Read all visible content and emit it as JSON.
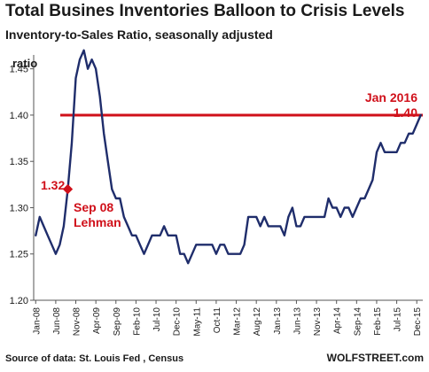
{
  "header": {
    "title": "Total Busines Inventories Balloon to Crisis Levels",
    "subtitle": "Inventory-to-Sales Ratio, seasonally adjusted"
  },
  "footer": {
    "source": "Source of data: St. Louis Fed , Census",
    "brand": "WOLFSTREET.com"
  },
  "chart_data": {
    "type": "line",
    "title": "Total Busines Inventories Balloon to Crisis Levels",
    "subtitle": "Inventory-to-Sales Ratio, seasonally adjusted",
    "ylabel": "ratio",
    "xlabel": "",
    "ylim": [
      1.2,
      1.47
    ],
    "yticks": [
      1.2,
      1.25,
      1.3,
      1.35,
      1.4,
      1.45
    ],
    "ytick_labels": [
      "1.20",
      "1.25",
      "1.30",
      "1.35",
      "1.40",
      "1.45"
    ],
    "xtick_labels": [
      "Jan-08",
      "Jun-08",
      "Nov-08",
      "Apr-09",
      "Sep-09",
      "Feb-10",
      "Jul-10",
      "Dec-10",
      "May-11",
      "Oct-11",
      "Mar-12",
      "Aug-12",
      "Jan-13",
      "Jun-13",
      "Nov-13",
      "Apr-14",
      "Sep-14",
      "Feb-15",
      "Jul-15",
      "Dec-15"
    ],
    "grid": false,
    "line_color": "#1f2d6b",
    "reference_line": {
      "value": 1.4,
      "color": "#d0101a"
    },
    "series": [
      {
        "x": [
          "Jan-08",
          "Feb-08",
          "Mar-08",
          "Apr-08",
          "May-08",
          "Jun-08",
          "Jul-08",
          "Aug-08",
          "Sep-08",
          "Oct-08",
          "Nov-08",
          "Dec-08",
          "Jan-09",
          "Feb-09",
          "Mar-09",
          "Apr-09",
          "May-09",
          "Jun-09",
          "Jul-09",
          "Aug-09",
          "Sep-09",
          "Oct-09",
          "Nov-09",
          "Dec-09",
          "Jan-10",
          "Feb-10",
          "Mar-10",
          "Apr-10",
          "May-10",
          "Jun-10",
          "Jul-10",
          "Aug-10",
          "Sep-10",
          "Oct-10",
          "Nov-10",
          "Dec-10",
          "Jan-11",
          "Feb-11",
          "Mar-11",
          "Apr-11",
          "May-11",
          "Jun-11",
          "Jul-11",
          "Aug-11",
          "Sep-11",
          "Oct-11",
          "Nov-11",
          "Dec-11",
          "Jan-12",
          "Feb-12",
          "Mar-12",
          "Apr-12",
          "May-12",
          "Jun-12",
          "Jul-12",
          "Aug-12",
          "Sep-12",
          "Oct-12",
          "Nov-12",
          "Dec-12",
          "Jan-13",
          "Feb-13",
          "Mar-13",
          "Apr-13",
          "May-13",
          "Jun-13",
          "Jul-13",
          "Aug-13",
          "Sep-13",
          "Oct-13",
          "Nov-13",
          "Dec-13",
          "Jan-14",
          "Feb-14",
          "Mar-14",
          "Apr-14",
          "May-14",
          "Jun-14",
          "Jul-14",
          "Aug-14",
          "Sep-14",
          "Oct-14",
          "Nov-14",
          "Dec-14",
          "Jan-15",
          "Feb-15",
          "Mar-15",
          "Apr-15",
          "May-15",
          "Jun-15",
          "Jul-15",
          "Aug-15",
          "Sep-15",
          "Oct-15",
          "Nov-15",
          "Dec-15",
          "Jan-16"
        ],
        "values": [
          1.27,
          1.29,
          1.28,
          1.27,
          1.26,
          1.25,
          1.26,
          1.28,
          1.32,
          1.37,
          1.44,
          1.46,
          1.47,
          1.45,
          1.46,
          1.45,
          1.42,
          1.38,
          1.35,
          1.32,
          1.31,
          1.31,
          1.29,
          1.28,
          1.27,
          1.27,
          1.26,
          1.25,
          1.26,
          1.27,
          1.27,
          1.27,
          1.28,
          1.27,
          1.27,
          1.27,
          1.25,
          1.25,
          1.24,
          1.25,
          1.26,
          1.26,
          1.26,
          1.26,
          1.26,
          1.25,
          1.26,
          1.26,
          1.25,
          1.25,
          1.25,
          1.25,
          1.26,
          1.29,
          1.29,
          1.29,
          1.28,
          1.29,
          1.28,
          1.28,
          1.28,
          1.28,
          1.27,
          1.29,
          1.3,
          1.28,
          1.28,
          1.29,
          1.29,
          1.29,
          1.29,
          1.29,
          1.29,
          1.31,
          1.3,
          1.3,
          1.29,
          1.3,
          1.3,
          1.29,
          1.3,
          1.31,
          1.31,
          1.32,
          1.33,
          1.36,
          1.37,
          1.36,
          1.36,
          1.36,
          1.36,
          1.37,
          1.37,
          1.38,
          1.38,
          1.39,
          1.4
        ]
      }
    ],
    "annotations": [
      {
        "text": "Jan 2016",
        "color": "#d0101a"
      },
      {
        "text": "1.40",
        "color": "#d0101a"
      },
      {
        "text": "1.32",
        "color": "#d0101a",
        "x": "Sep-08",
        "y": 1.32
      },
      {
        "text": "Sep 08",
        "color": "#d0101a"
      },
      {
        "text": "Lehman",
        "color": "#d0101a"
      }
    ]
  }
}
